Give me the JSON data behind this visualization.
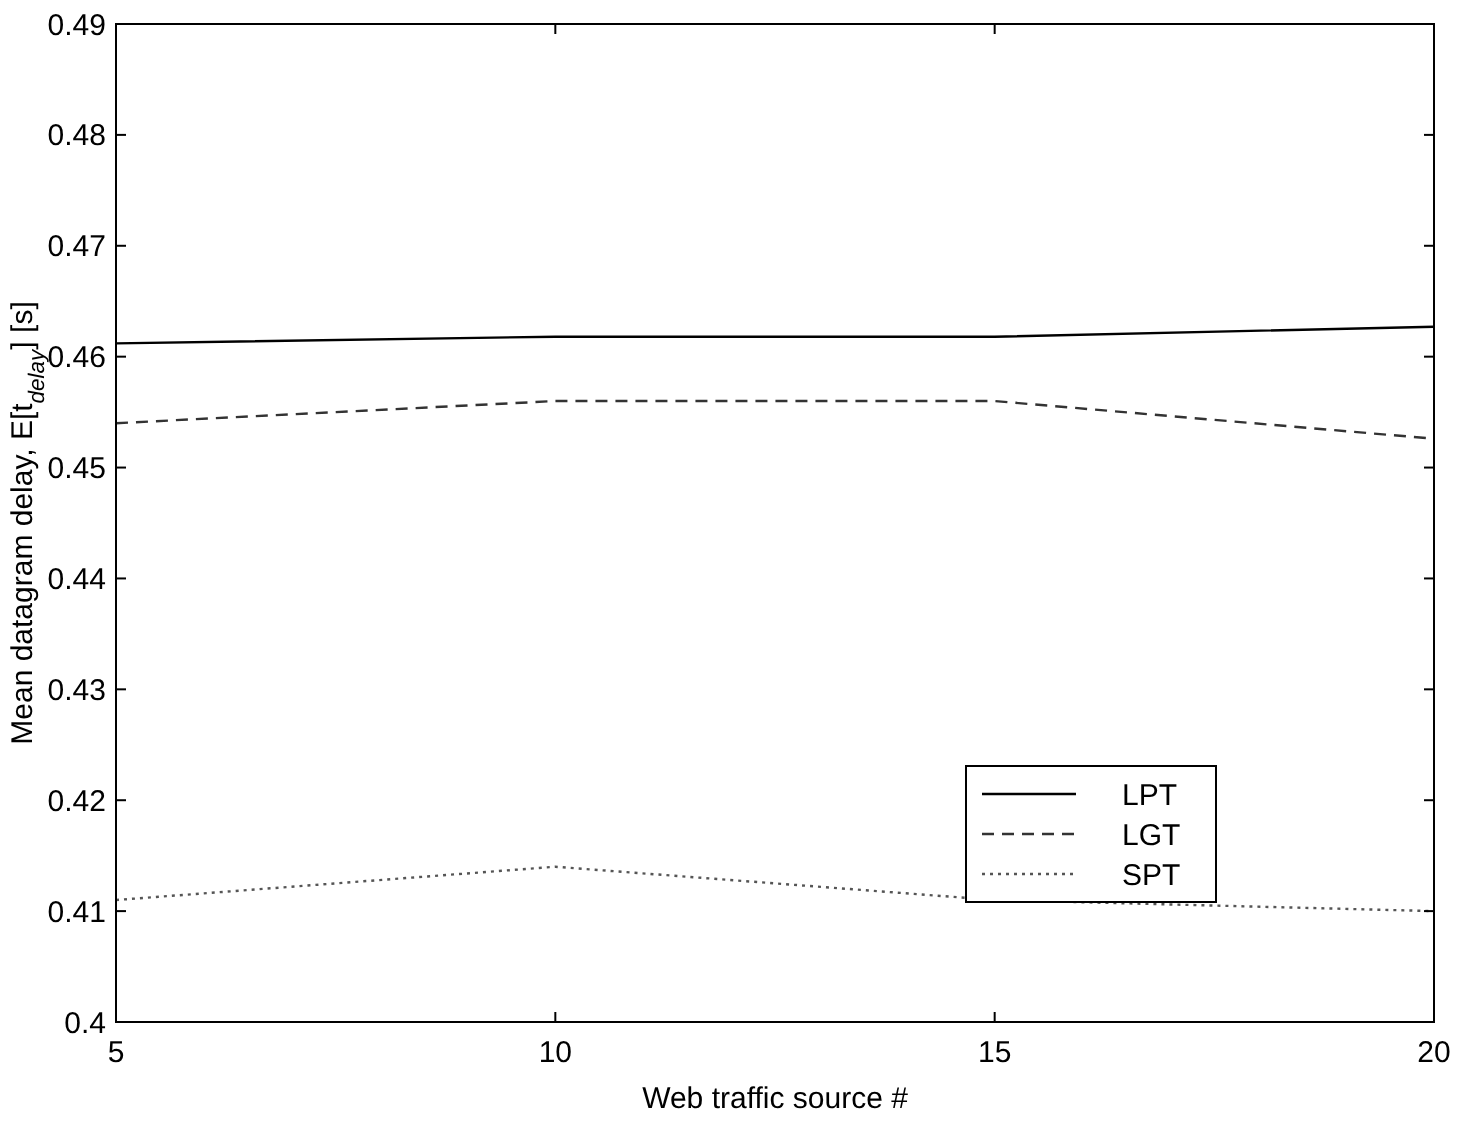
{
  "chart_data": {
    "type": "line",
    "xlabel": "Web traffic source #",
    "ylabel": "Mean datagram delay, E[t$_{delay}$] [s]",
    "x": [
      5,
      10,
      15,
      20
    ],
    "series": [
      {
        "name": "LPT",
        "color": "#000000",
        "line_style": "solid",
        "values": [
          0.4612,
          0.4618,
          0.4618,
          0.4627
        ]
      },
      {
        "name": "LGT",
        "color": "#333333",
        "line_style": "dashed",
        "values": [
          0.454,
          0.456,
          0.456,
          0.4526
        ]
      },
      {
        "name": "SPT",
        "color": "#555555",
        "line_style": "dotted",
        "values": [
          0.411,
          0.414,
          0.411,
          0.41
        ]
      }
    ],
    "xlim": [
      5,
      20
    ],
    "xticks": [
      5,
      10,
      15,
      20
    ],
    "ylim": [
      0.4,
      0.49
    ],
    "yticks": [
      0.4,
      0.41,
      0.42,
      0.43,
      0.44,
      0.45,
      0.46,
      0.47,
      0.48,
      0.49
    ],
    "grid": false,
    "legend": "right",
    "marker": "none"
  }
}
